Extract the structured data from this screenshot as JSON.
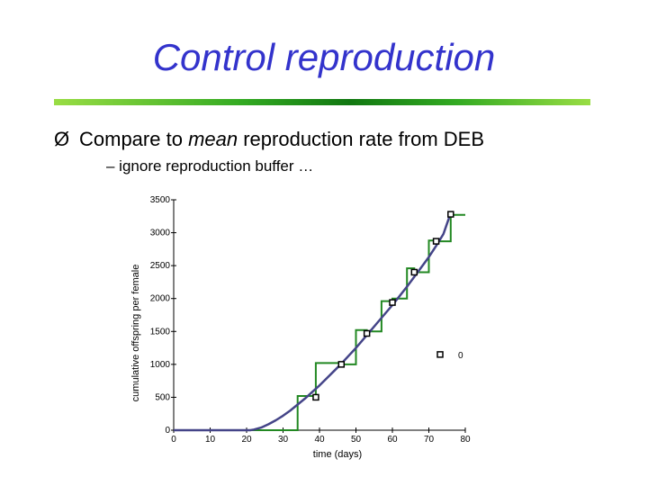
{
  "slide": {
    "title": "Control reproduction",
    "bullet_marker": "Ø",
    "bullet_pre": "Compare to ",
    "bullet_em": "mean",
    "bullet_post": " reproduction rate from DEB",
    "subbullet": "– ignore reproduction buffer …"
  },
  "colors": {
    "title": "#3333cc",
    "step_line": "#228822",
    "model_curve": "#444488",
    "axis": "#000000"
  },
  "chart_data": {
    "type": "line",
    "xlabel": "time (days)",
    "ylabel": "cumulative offspring per female",
    "xlim": [
      0,
      80
    ],
    "ylim": [
      0,
      3500
    ],
    "xticks": [
      0,
      10,
      20,
      30,
      40,
      50,
      60,
      70,
      80
    ],
    "yticks": [
      0,
      500,
      1000,
      1500,
      2000,
      2500,
      3000,
      3500
    ],
    "legend": {
      "placement": "right",
      "entries": [
        "0"
      ]
    },
    "series": [
      {
        "kind": "step",
        "x": [
          0,
          34,
          34,
          39,
          39,
          46,
          46,
          50,
          50,
          53,
          53,
          57,
          57,
          60,
          60,
          64,
          64,
          66,
          66,
          70,
          70,
          72,
          72,
          76,
          76,
          80
        ],
        "y": [
          0,
          0,
          520,
          520,
          1020,
          1020,
          1000,
          1000,
          1520,
          1520,
          1500,
          1500,
          1960,
          1960,
          2000,
          2000,
          2460,
          2460,
          2400,
          2400,
          2880,
          2880,
          2870,
          2870,
          3270,
          3270
        ]
      },
      {
        "kind": "smooth",
        "x": [
          0,
          21,
          22,
          24,
          26,
          28,
          30,
          32,
          34,
          36,
          38,
          40,
          42,
          44,
          46,
          48,
          50,
          52,
          54,
          56,
          58,
          60,
          62,
          64,
          66,
          68,
          70,
          72,
          74,
          76
        ],
        "y": [
          0,
          0,
          10,
          40,
          90,
          150,
          220,
          300,
          390,
          480,
          580,
          680,
          790,
          900,
          1010,
          1130,
          1250,
          1380,
          1510,
          1640,
          1770,
          1900,
          2040,
          2180,
          2330,
          2480,
          2630,
          2800,
          2980,
          3300
        ]
      },
      {
        "kind": "markers",
        "x": [
          39,
          46,
          53,
          60,
          66,
          72,
          76
        ],
        "y": [
          500,
          1000,
          1470,
          1940,
          2400,
          2870,
          3280
        ]
      }
    ]
  }
}
